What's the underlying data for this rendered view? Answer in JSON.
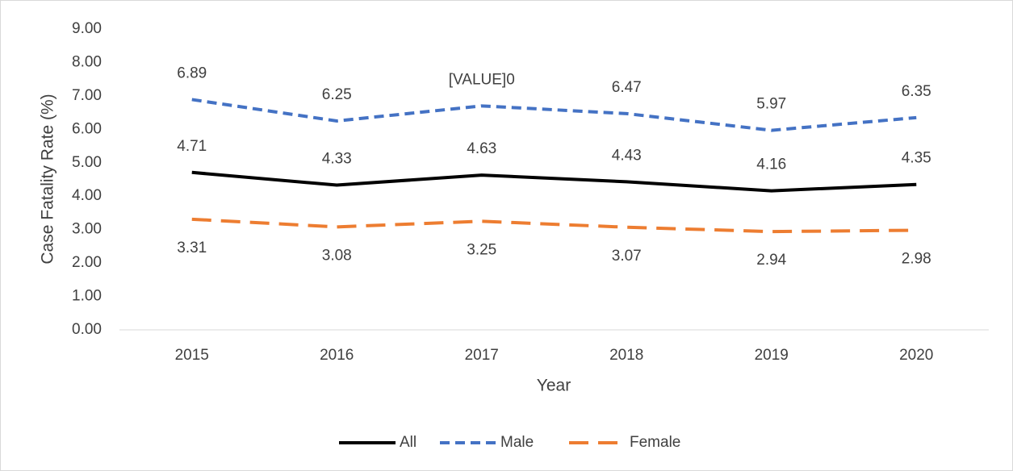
{
  "chart_data": {
    "type": "line",
    "x_label": "Year",
    "y_label": "Case Fatality Rate (%)",
    "categories": [
      "2015",
      "2016",
      "2017",
      "2018",
      "2019",
      "2020"
    ],
    "series": [
      {
        "name": "All",
        "color": "#000000",
        "values": [
          4.71,
          4.33,
          4.63,
          4.43,
          4.16,
          4.35
        ]
      },
      {
        "name": "Male",
        "color": "#4472c4",
        "values": [
          6.89,
          6.25,
          6.7,
          6.47,
          5.97,
          6.35
        ],
        "value_labels": [
          "6.89",
          "6.25",
          "[VALUE]0",
          "6.47",
          "5.97",
          "6.35"
        ]
      },
      {
        "name": "Female",
        "color": "#ed7d31",
        "values": [
          3.31,
          3.08,
          3.25,
          3.07,
          2.94,
          2.98
        ]
      }
    ],
    "ylim": [
      0,
      9
    ],
    "yticks": [
      {
        "value": 0,
        "label": "0.00"
      },
      {
        "value": 1,
        "label": "1.00"
      },
      {
        "value": 2,
        "label": "2.00"
      },
      {
        "value": 3,
        "label": "3.00"
      },
      {
        "value": 4,
        "label": "4.00"
      },
      {
        "value": 5,
        "label": "5.00"
      },
      {
        "value": 6,
        "label": "6.00"
      },
      {
        "value": 7,
        "label": "7.00"
      },
      {
        "value": 8,
        "label": "8.00"
      },
      {
        "value": 9,
        "label": "9.00"
      }
    ],
    "legend": "bottom"
  }
}
